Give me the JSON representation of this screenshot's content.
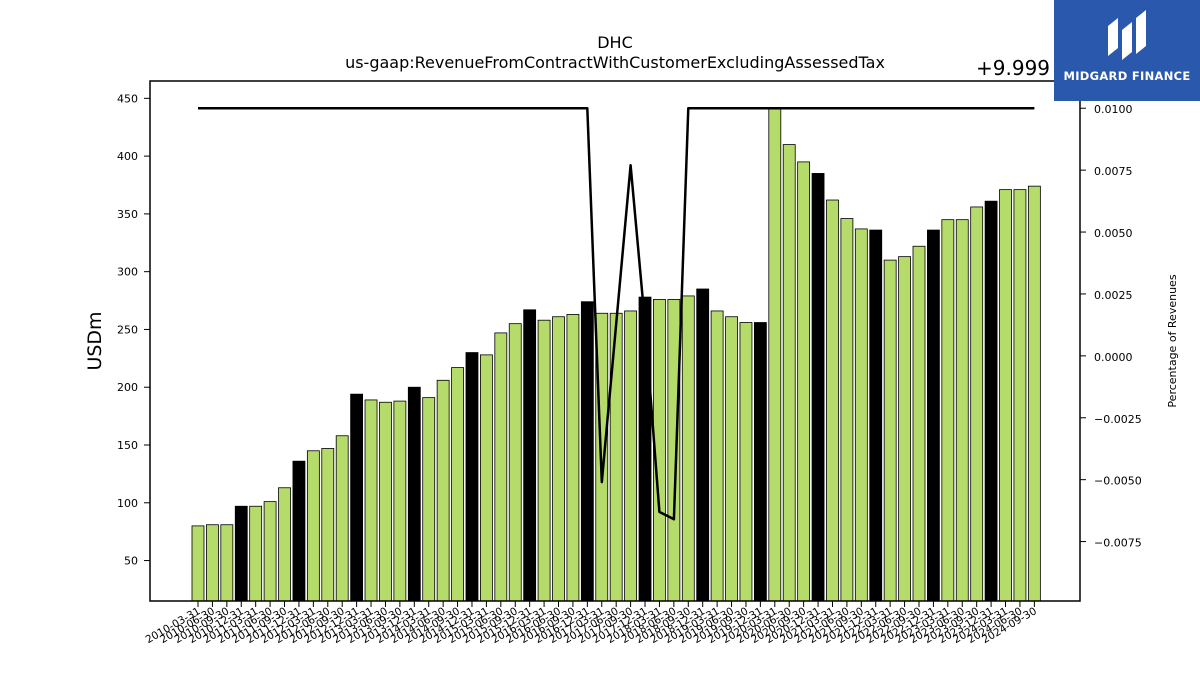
{
  "chart_data": {
    "type": "bar",
    "title": "DHC",
    "subtitle": "us-gaap:RevenueFromContractWithCustomerExcludingAssessedTax",
    "ylabel": "USDm",
    "y2label": "Percentage of Revenues",
    "y2_offset_label": "+9.999",
    "ylim": [
      15,
      465
    ],
    "y2lim": [
      -0.0099,
      0.0111
    ],
    "yticks": [
      50,
      100,
      150,
      200,
      250,
      300,
      350,
      400,
      450
    ],
    "y2ticks": [
      "0.0100",
      "0.0075",
      "0.0050",
      "0.0025",
      "0.0000",
      "−0.0025",
      "−0.0050",
      "−0.0075"
    ],
    "y2tick_values": [
      0.01,
      0.0075,
      0.005,
      0.0025,
      0,
      -0.0025,
      -0.005,
      -0.0075
    ],
    "colors": {
      "quarter": "#b5dc6a",
      "year_end": "#000000",
      "edge": "#000000",
      "line": "#000000"
    },
    "categories": [
      "2010-03-31",
      "2010-06-30",
      "2010-09-30",
      "2010-12-31",
      "2011-03-31",
      "2011-06-30",
      "2011-09-30",
      "2011-12-31",
      "2012-03-31",
      "2012-06-30",
      "2012-09-30",
      "2012-12-31",
      "2013-03-31",
      "2013-06-30",
      "2013-09-30",
      "2013-12-31",
      "2014-03-31",
      "2014-06-30",
      "2014-09-30",
      "2014-12-31",
      "2015-03-31",
      "2015-06-30",
      "2015-09-30",
      "2015-12-31",
      "2016-03-31",
      "2016-06-30",
      "2016-09-30",
      "2016-12-31",
      "2017-03-31",
      "2017-06-30",
      "2017-09-30",
      "2017-12-31",
      "2018-03-31",
      "2018-06-30",
      "2018-09-30",
      "2018-12-31",
      "2019-03-31",
      "2019-06-30",
      "2019-09-30",
      "2019-12-31",
      "2020-03-31",
      "2020-06-30",
      "2020-09-30",
      "2020-12-31",
      "2021-03-31",
      "2021-06-30",
      "2021-09-30",
      "2021-12-31",
      "2022-03-31",
      "2022-06-30",
      "2022-09-30",
      "2022-12-31",
      "2023-03-31",
      "2023-06-30",
      "2023-09-30",
      "2023-12-31",
      "2024-03-31",
      "2024-06-30",
      "2024-09-30"
    ],
    "values": [
      80,
      81,
      81,
      97,
      97,
      101,
      113,
      136,
      145,
      147,
      158,
      194,
      189,
      187,
      188,
      200,
      191,
      206,
      217,
      230,
      228,
      247,
      255,
      267,
      258,
      261,
      263,
      274,
      264,
      264,
      266,
      278,
      276,
      276,
      279,
      285,
      266,
      261,
      256,
      256,
      442,
      410,
      395,
      385,
      362,
      346,
      337,
      336,
      310,
      313,
      322,
      336,
      345,
      345,
      356,
      361,
      371,
      371,
      374
    ],
    "year_end": [
      false,
      false,
      false,
      true,
      false,
      false,
      false,
      true,
      false,
      false,
      false,
      true,
      false,
      false,
      false,
      true,
      false,
      false,
      false,
      true,
      false,
      false,
      false,
      true,
      false,
      false,
      false,
      true,
      false,
      false,
      false,
      true,
      false,
      false,
      false,
      true,
      false,
      false,
      false,
      true,
      false,
      false,
      false,
      true,
      false,
      false,
      false,
      true,
      false,
      false,
      false,
      true,
      false,
      false,
      false,
      true,
      false,
      false,
      false
    ],
    "series": [
      {
        "values": [
          0.01,
          0.01,
          0.01,
          0.01,
          0.01,
          0.01,
          0.01,
          0.01,
          0.01,
          0.01,
          0.01,
          0.01,
          0.01,
          0.01,
          0.01,
          0.01,
          0.01,
          0.01,
          0.01,
          0.01,
          0.01,
          0.01,
          0.01,
          0.01,
          0.01,
          0.01,
          0.01,
          0.01,
          -0.0051,
          0.0013,
          0.0077,
          0.0013,
          -0.0063,
          -0.0066,
          0.01,
          0.01,
          0.01,
          0.01,
          0.01,
          0.01,
          0.01,
          0.01,
          0.01,
          0.01,
          0.01,
          0.01,
          0.01,
          0.01,
          0.01,
          0.01,
          0.01,
          0.01,
          0.01,
          0.01,
          0.01,
          0.01,
          0.01,
          0.01,
          0.01
        ]
      }
    ]
  },
  "logo": {
    "text": "MIDGARD FINANCE"
  }
}
